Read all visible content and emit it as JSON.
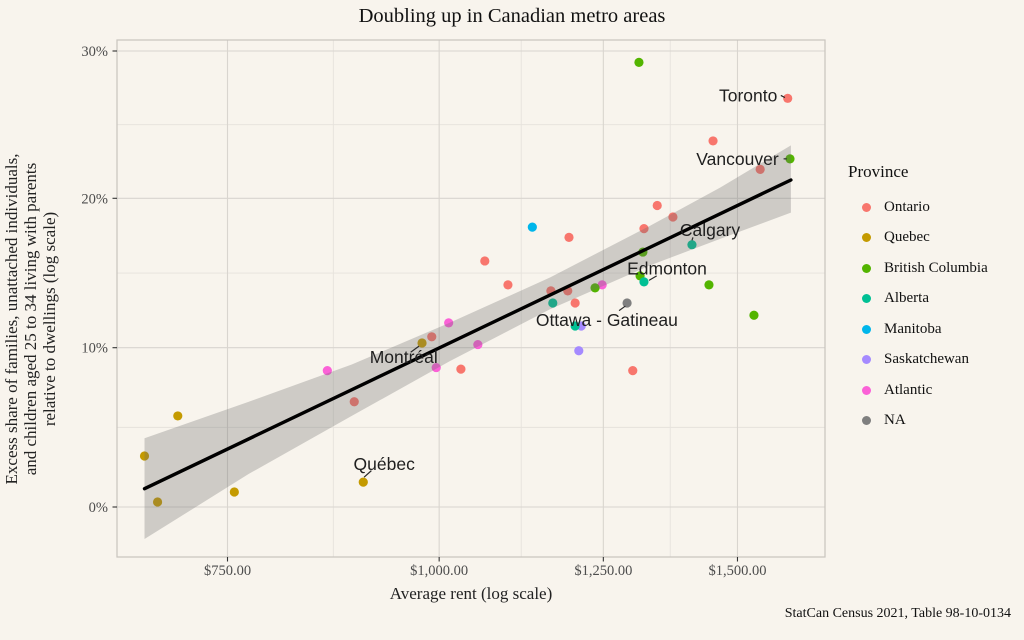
{
  "title": "Doubling up in Canadian metro areas",
  "caption": "StatCan Census 2021, Table 98-10-0134",
  "axes": {
    "x": {
      "title": "Average rent (log scale)",
      "scale": "log",
      "tick_values": [
        750,
        1000,
        1250,
        1500
      ],
      "tick_labels": [
        "$750.00",
        "$1,000.00",
        "$1,250.00",
        "$1,500.00"
      ],
      "minor_tick_values": [
        866,
        1118,
        1369
      ],
      "domain": [
        646,
        1689
      ]
    },
    "y": {
      "title": "Excess share of families, unattached individuals,\nand children aged 25 to 34 living with parents\nrelative to dwellings (log scale)",
      "scale": "log1p",
      "tick_values": [
        0,
        10,
        20,
        30
      ],
      "tick_labels": [
        "0%",
        "10%",
        "20%",
        "30%"
      ],
      "minor_tick_values": [
        4.88,
        14.89,
        24.9
      ],
      "domain": [
        -2.9,
        30.8
      ]
    }
  },
  "legend": {
    "title": "Province",
    "items": [
      {
        "label": "Ontario",
        "color": "#F8766D"
      },
      {
        "label": "Quebec",
        "color": "#C49A00"
      },
      {
        "label": "British Columbia",
        "color": "#53B400"
      },
      {
        "label": "Alberta",
        "color": "#00C094"
      },
      {
        "label": "Manitoba",
        "color": "#00B6EB"
      },
      {
        "label": "Saskatchewan",
        "color": "#A58AFF"
      },
      {
        "label": "Atlantic",
        "color": "#FB61D7"
      },
      {
        "label": "NA",
        "color": "#7F7F7F"
      }
    ]
  },
  "chart_data": {
    "type": "scatter",
    "x_scale": "log",
    "y_scale": "log1p",
    "xlabel": "Average rent (log scale)",
    "ylabel": "Excess share relative to dwellings (log scale)",
    "grid": true,
    "legend_position": "right",
    "points": [
      {
        "province": "Ontario",
        "rent": 1606,
        "pct": 26.7,
        "city": "Toronto"
      },
      {
        "province": "Ontario",
        "rent": 1451,
        "pct": 23.8
      },
      {
        "province": "Ontario",
        "rent": 1547,
        "pct": 21.9
      },
      {
        "province": "Ontario",
        "rent": 1345,
        "pct": 19.5
      },
      {
        "province": "Ontario",
        "rent": 1374,
        "pct": 18.7
      },
      {
        "province": "Ontario",
        "rent": 1321,
        "pct": 17.9
      },
      {
        "province": "Ontario",
        "rent": 1193,
        "pct": 17.3
      },
      {
        "province": "Ontario",
        "rent": 1064,
        "pct": 15.7
      },
      {
        "province": "Ontario",
        "rent": 1098,
        "pct": 14.1
      },
      {
        "province": "Ontario",
        "rent": 1164,
        "pct": 13.7
      },
      {
        "province": "Ontario",
        "rent": 1191,
        "pct": 13.7
      },
      {
        "province": "Ontario",
        "rent": 1203,
        "pct": 12.9
      },
      {
        "province": "Ontario",
        "rent": 990,
        "pct": 10.7
      },
      {
        "province": "Ontario",
        "rent": 1030,
        "pct": 8.6
      },
      {
        "province": "Ontario",
        "rent": 1301,
        "pct": 8.5
      },
      {
        "province": "Ontario",
        "rent": 891,
        "pct": 6.5
      },
      {
        "province": "Quebec",
        "rent": 977,
        "pct": 10.3,
        "city": "Montréal"
      },
      {
        "province": "Quebec",
        "rent": 902,
        "pct": 1.5,
        "city": "Québec"
      },
      {
        "province": "Quebec",
        "rent": 701,
        "pct": 5.6
      },
      {
        "province": "Quebec",
        "rent": 670,
        "pct": 3.1
      },
      {
        "province": "Quebec",
        "rent": 682,
        "pct": 0.3
      },
      {
        "province": "Quebec",
        "rent": 757,
        "pct": 0.9
      },
      {
        "province": "Saskatchewan",
        "rent": 1213,
        "pct": 11.4
      },
      {
        "province": "Saskatchewan",
        "rent": 1209,
        "pct": 9.8
      },
      {
        "province": "Atlantic",
        "rent": 859,
        "pct": 8.5
      },
      {
        "province": "Atlantic",
        "rent": 996,
        "pct": 8.7
      },
      {
        "province": "Atlantic",
        "rent": 1013,
        "pct": 11.6
      },
      {
        "province": "Atlantic",
        "rent": 1054,
        "pct": 10.2
      },
      {
        "province": "Atlantic",
        "rent": 1248,
        "pct": 14.1
      },
      {
        "province": "Manitoba",
        "rent": 1135,
        "pct": 18.0
      },
      {
        "province": "British Columbia",
        "rent": 1312,
        "pct": 29.2
      },
      {
        "province": "British Columbia",
        "rent": 1611,
        "pct": 22.6,
        "city": "Vancouver"
      },
      {
        "province": "British Columbia",
        "rent": 1319,
        "pct": 16.3
      },
      {
        "province": "British Columbia",
        "rent": 1314,
        "pct": 14.7
      },
      {
        "province": "British Columbia",
        "rent": 1236,
        "pct": 13.9
      },
      {
        "province": "British Columbia",
        "rent": 1443,
        "pct": 14.1
      },
      {
        "province": "British Columbia",
        "rent": 1534,
        "pct": 12.1
      },
      {
        "province": "Alberta",
        "rent": 1410,
        "pct": 16.8,
        "city": "Calgary"
      },
      {
        "province": "Alberta",
        "rent": 1321,
        "pct": 14.3,
        "city": "Edmonton"
      },
      {
        "province": "Alberta",
        "rent": 1167,
        "pct": 12.9
      },
      {
        "province": "Alberta",
        "rent": 1203,
        "pct": 11.4
      },
      {
        "province": "NA",
        "rent": 1291,
        "pct": 12.9,
        "city": "Ottawa - Gatineau"
      }
    ],
    "trend": {
      "line": [
        {
          "rent": 670,
          "pct": 1.1
        },
        {
          "rent": 1613,
          "pct": 21.2
        }
      ],
      "band": [
        {
          "rent": 670,
          "lo": -1.9,
          "hi": 4.2
        },
        {
          "rent": 772,
          "lo": 2.0,
          "hi": 6.5
        },
        {
          "rent": 888,
          "lo": 5.6,
          "hi": 8.9
        },
        {
          "rent": 1014,
          "lo": 9.1,
          "hi": 11.6
        },
        {
          "rent": 1163,
          "lo": 12.5,
          "hi": 14.6
        },
        {
          "rent": 1332,
          "lo": 15.4,
          "hi": 18.1
        },
        {
          "rent": 1465,
          "lo": 17.2,
          "hi": 20.7
        },
        {
          "rent": 1613,
          "lo": 19.0,
          "hi": 23.5
        }
      ]
    },
    "city_labels": [
      {
        "text": "Toronto",
        "rent": 1522,
        "pct": 26.9,
        "leader": [
          [
            1591,
            26.9
          ],
          [
            1600,
            26.75
          ]
        ]
      },
      {
        "text": "Vancouver",
        "rent": 1500,
        "pct": 22.6,
        "leader": [
          [
            1597,
            22.6
          ],
          [
            1604,
            22.6
          ]
        ]
      },
      {
        "text": "Calgary",
        "rent": 1445,
        "pct": 17.8,
        "leader": [
          [
            1412,
            17.3
          ],
          [
            1410,
            17.1
          ]
        ]
      },
      {
        "text": "Edmonton",
        "rent": 1363,
        "pct": 15.2,
        "leader": [
          [
            1344,
            14.7
          ],
          [
            1330,
            14.4
          ]
        ]
      },
      {
        "text": "Ottawa - Gatineau",
        "rent": 1256,
        "pct": 11.8,
        "leader": [
          [
            1277,
            12.4
          ],
          [
            1288,
            12.7
          ]
        ]
      },
      {
        "text": "Montréal",
        "rent": 953,
        "pct": 9.4,
        "leader": [
          [
            962,
            9.7
          ],
          [
            973,
            10.1
          ]
        ]
      },
      {
        "text": "Québec",
        "rent": 928,
        "pct": 2.6,
        "leader": [
          [
            912,
            2.2
          ],
          [
            903,
            1.8
          ]
        ]
      }
    ]
  },
  "colors": {
    "background": "#f8f4ed",
    "panel_border": "#c8c4be",
    "grid_major": "#d9d5cf",
    "grid_minor": "#e6e2dc",
    "tick_mark": "#333333",
    "tick_label": "#4d4d4d",
    "trend_line": "#000000",
    "band_fill": "#6e6e6e",
    "city_label": "#1f1f1f",
    "province_colors": {
      "Ontario": "#F8766D",
      "Quebec": "#C49A00",
      "British Columbia": "#53B400",
      "Alberta": "#00C094",
      "Manitoba": "#00B6EB",
      "Saskatchewan": "#A58AFF",
      "Atlantic": "#FB61D7",
      "NA": "#7F7F7F"
    }
  }
}
